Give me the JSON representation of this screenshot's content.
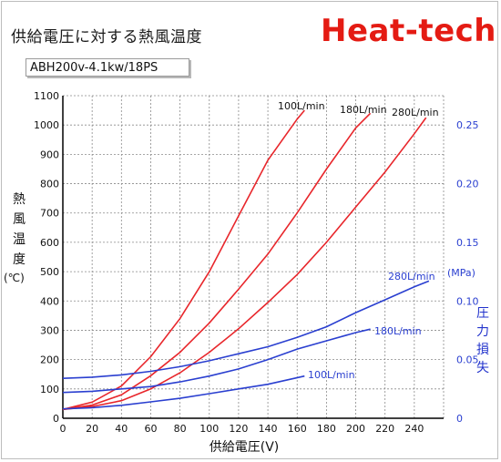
{
  "header": {
    "title": "供給電圧に対する熱風温度",
    "brand": "Heat-tech",
    "model": "ABH200v-4.1kw/18PS"
  },
  "chart_data": {
    "type": "line",
    "xlabel": "供給電圧(V)",
    "ylabel": "熱風温度",
    "ylabel_chars": [
      "熱",
      "風",
      "温",
      "度"
    ],
    "yunit": "(℃)",
    "y2label": "圧力損失",
    "y2label_chars": [
      "圧",
      "力",
      "損",
      "失"
    ],
    "y2unit": "(MPa)",
    "xlim": [
      0,
      260
    ],
    "ylim": [
      0,
      1100
    ],
    "y2lim": [
      0,
      0.275
    ],
    "xticks": [
      0,
      20,
      40,
      60,
      80,
      100,
      120,
      140,
      160,
      180,
      200,
      220,
      240
    ],
    "yticks": [
      0,
      100,
      200,
      300,
      400,
      500,
      600,
      700,
      800,
      900,
      1000,
      1100
    ],
    "y2ticks": [
      0,
      0.05,
      0.1,
      0.15,
      0.2,
      0.25
    ],
    "grid": true,
    "temperature_series": [
      {
        "name": "100L/min",
        "color": "#e8262b",
        "x": [
          0,
          20,
          40,
          60,
          80,
          100,
          120,
          140,
          160,
          165
        ],
        "y": [
          30,
          55,
          110,
          210,
          340,
          500,
          690,
          880,
          1020,
          1050
        ]
      },
      {
        "name": "180L/min",
        "color": "#e8262b",
        "x": [
          0,
          20,
          40,
          60,
          80,
          100,
          120,
          140,
          160,
          180,
          200,
          210
        ],
        "y": [
          30,
          45,
          80,
          145,
          225,
          325,
          440,
          560,
          700,
          850,
          990,
          1040
        ]
      },
      {
        "name": "280L/min",
        "color": "#e8262b",
        "x": [
          0,
          20,
          40,
          60,
          80,
          100,
          120,
          140,
          160,
          180,
          200,
          220,
          240,
          248
        ],
        "y": [
          30,
          40,
          60,
          100,
          155,
          225,
          305,
          395,
          490,
          600,
          720,
          840,
          970,
          1025
        ]
      }
    ],
    "pressure_series": [
      {
        "name": "100L/min",
        "color": "#2a3fd0",
        "x": [
          0,
          20,
          40,
          60,
          80,
          100,
          120,
          140,
          165
        ],
        "y": [
          0.008,
          0.009,
          0.011,
          0.014,
          0.017,
          0.021,
          0.025,
          0.029,
          0.036
        ]
      },
      {
        "name": "180L/min",
        "color": "#2a3fd0",
        "x": [
          0,
          20,
          40,
          60,
          80,
          100,
          120,
          140,
          160,
          180,
          200,
          210
        ],
        "y": [
          0.022,
          0.023,
          0.025,
          0.027,
          0.031,
          0.036,
          0.042,
          0.05,
          0.059,
          0.066,
          0.073,
          0.076
        ]
      },
      {
        "name": "280L/min",
        "color": "#2a3fd0",
        "x": [
          0,
          20,
          40,
          60,
          80,
          100,
          120,
          140,
          160,
          180,
          200,
          220,
          240,
          250
        ],
        "y": [
          0.034,
          0.035,
          0.037,
          0.04,
          0.044,
          0.049,
          0.055,
          0.061,
          0.069,
          0.078,
          0.09,
          0.101,
          0.112,
          0.117
        ]
      }
    ],
    "labels": {
      "t100": "100L/min",
      "t180": "180L/min",
      "t280": "280L/min",
      "p100": "100L/min",
      "p180": "180L/min",
      "p280": "280L/min"
    },
    "colors": {
      "temperature": "#e8262b",
      "pressure": "#2a3fd0",
      "grid": "#8a8a8a",
      "axis": "#000000"
    }
  }
}
